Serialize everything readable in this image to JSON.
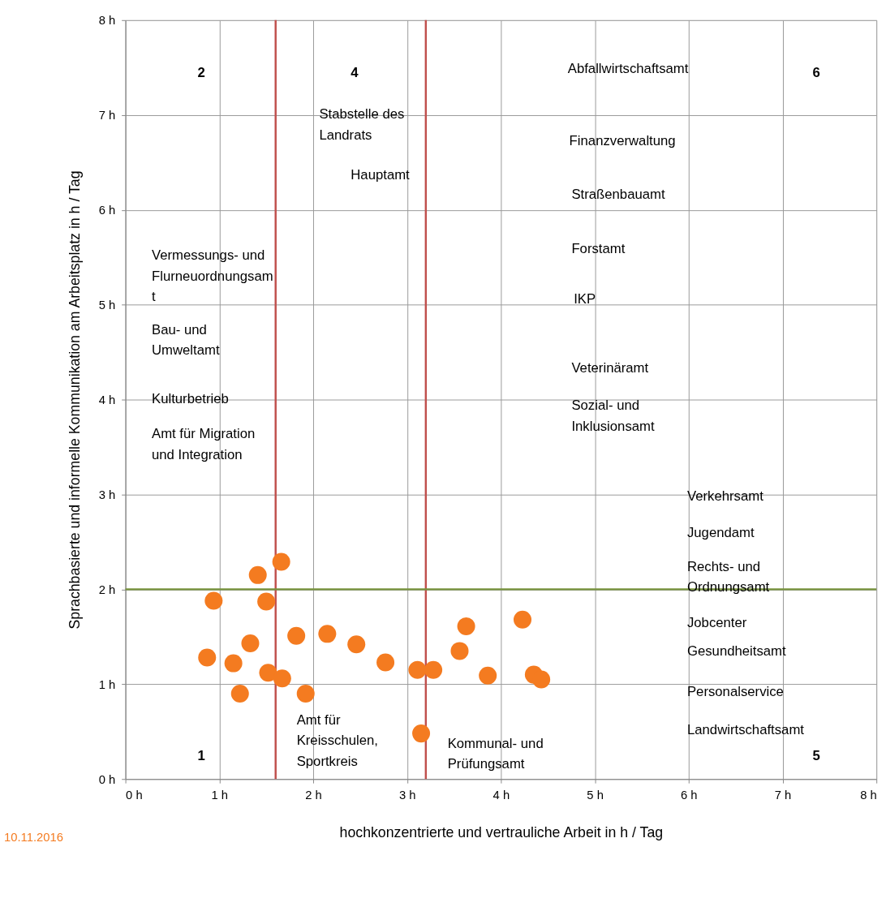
{
  "chart_data": {
    "type": "scatter",
    "xlabel": "hochkonzentrierte und vertrauliche Arbeit in h / Tag",
    "ylabel": "Sprachbasierte und informelle Kommunikation am Arbeitsplatz in h / Tag",
    "x": [
      0.94,
      0.87,
      1.15,
      1.33,
      1.22,
      1.41,
      1.66,
      1.5,
      1.52,
      1.67,
      1.92,
      1.82,
      2.15,
      2.46,
      2.77,
      3.11,
      3.28,
      3.15,
      3.56,
      3.63,
      3.86,
      4.23,
      4.35,
      4.43
    ],
    "series": [
      {
        "color": "#f47b20",
        "values": [
          1.88,
          1.28,
          1.22,
          1.43,
          0.9,
          2.15,
          2.29,
          1.87,
          1.12,
          1.06,
          0.9,
          1.51,
          1.53,
          1.42,
          1.23,
          1.15,
          1.15,
          0.48,
          1.35,
          1.61,
          1.09,
          1.68,
          1.1,
          1.05
        ]
      }
    ],
    "marker": "circle",
    "xlim": [
      0,
      8
    ],
    "ylim": [
      0,
      8
    ],
    "xticks": [
      {
        "value": 0,
        "label": "0 h"
      },
      {
        "value": 1,
        "label": "1 h"
      },
      {
        "value": 2,
        "label": "2 h"
      },
      {
        "value": 3,
        "label": "3 h"
      },
      {
        "value": 4,
        "label": "4 h"
      },
      {
        "value": 5,
        "label": "5 h"
      },
      {
        "value": 6,
        "label": "6 h"
      },
      {
        "value": 7,
        "label": "7 h"
      },
      {
        "value": 8,
        "label": "8 h"
      }
    ],
    "yticks": [
      {
        "value": 0,
        "label": "0 h"
      },
      {
        "value": 1,
        "label": "1 h"
      },
      {
        "value": 2,
        "label": "2 h"
      },
      {
        "value": 3,
        "label": "3 h"
      },
      {
        "value": 4,
        "label": "4 h"
      },
      {
        "value": 5,
        "label": "5 h"
      },
      {
        "value": 6,
        "label": "6 h"
      },
      {
        "value": 7,
        "label": "7 h"
      },
      {
        "value": 8,
        "label": "8 h"
      }
    ],
    "grid": true,
    "ref_lines": [
      {
        "axis": "x",
        "value": 1.6,
        "color": "#c0504d"
      },
      {
        "axis": "x",
        "value": 3.2,
        "color": "#c0504d"
      },
      {
        "axis": "y",
        "value": 2,
        "color": "#77933c"
      }
    ],
    "annotations": [
      "10.11.2016",
      "Abfallwirtschaftsamt",
      "Stabstelle des\nLandrats",
      "Hauptamt",
      "Finanzverwaltung",
      "Straßenbauamt",
      "Forstamt",
      "IKP",
      "Veterinäramt",
      "Sozial- und\nInklusionsamt",
      "Vermessungs- und\nFlurneuordnungsam\nt",
      "Bau- und\nUmweltamt",
      "Kulturbetrieb",
      "Amt für Migration\nund Integration",
      "Verkehrsamt",
      "Jugendamt",
      "Rechts- und\nOrdnungsamt",
      "Jobcenter",
      "Gesundheitsamt",
      "Personalservice",
      "Landwirtschaftsamt",
      "Amt für\nKreisschulen,\nSportkreis",
      "Kommunal- und\nPrüfungsamt",
      "1",
      "2",
      "4",
      "5",
      "6"
    ]
  }
}
